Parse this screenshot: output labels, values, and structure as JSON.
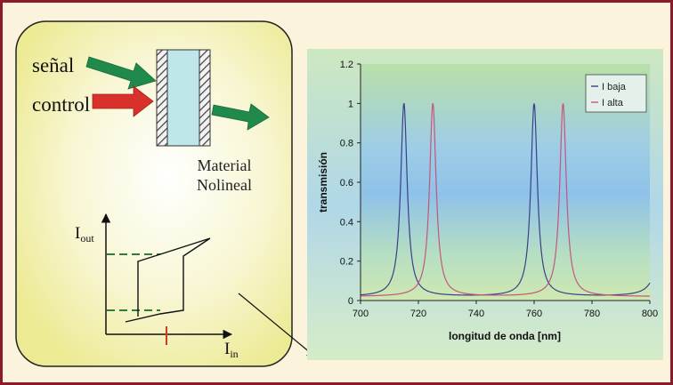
{
  "left_panel": {
    "signal_label": "señal",
    "control_label": "control",
    "material_label_line1": "Material",
    "material_label_line2": "Nolineal",
    "hysteresis": {
      "y_label_main": "I",
      "y_label_sub": "out",
      "x_label_main": "I",
      "x_label_sub": "in"
    },
    "colors": {
      "panel_bg": "#f3f0a6",
      "panel_glow": "#ffffff",
      "signal_arrow": "#1f8a4c",
      "control_arrow": "#d8302a",
      "output_arrow": "#1f8a4c",
      "dashed_levels": "#2e7d3a",
      "threshold_mark": "#d43a1f"
    }
  },
  "chart_data": {
    "type": "line",
    "xlabel": "longitud de onda [nm]",
    "ylabel": "transmisión",
    "xlim": [
      700,
      800
    ],
    "ylim": [
      0,
      1.2
    ],
    "x_ticks": [
      "700",
      "720",
      "740",
      "760",
      "780",
      "800"
    ],
    "y_ticks": [
      "0",
      "0.2",
      "0.4",
      "0.6",
      "0.8",
      "1",
      "1.2"
    ],
    "legend_position": "top-right",
    "series": [
      {
        "name": "I baja",
        "color": "#3a3f8a",
        "peaks": [
          715,
          760,
          805
        ],
        "peak_value": 1.0,
        "baseline": 0.02,
        "half_width_nm": 1.3
      },
      {
        "name": "I alta",
        "color": "#c4567e",
        "peaks": [
          725,
          770
        ],
        "peak_value": 1.0,
        "baseline": 0.02,
        "half_width_nm": 1.3
      }
    ]
  },
  "page_border_color": "#8b1a2a"
}
